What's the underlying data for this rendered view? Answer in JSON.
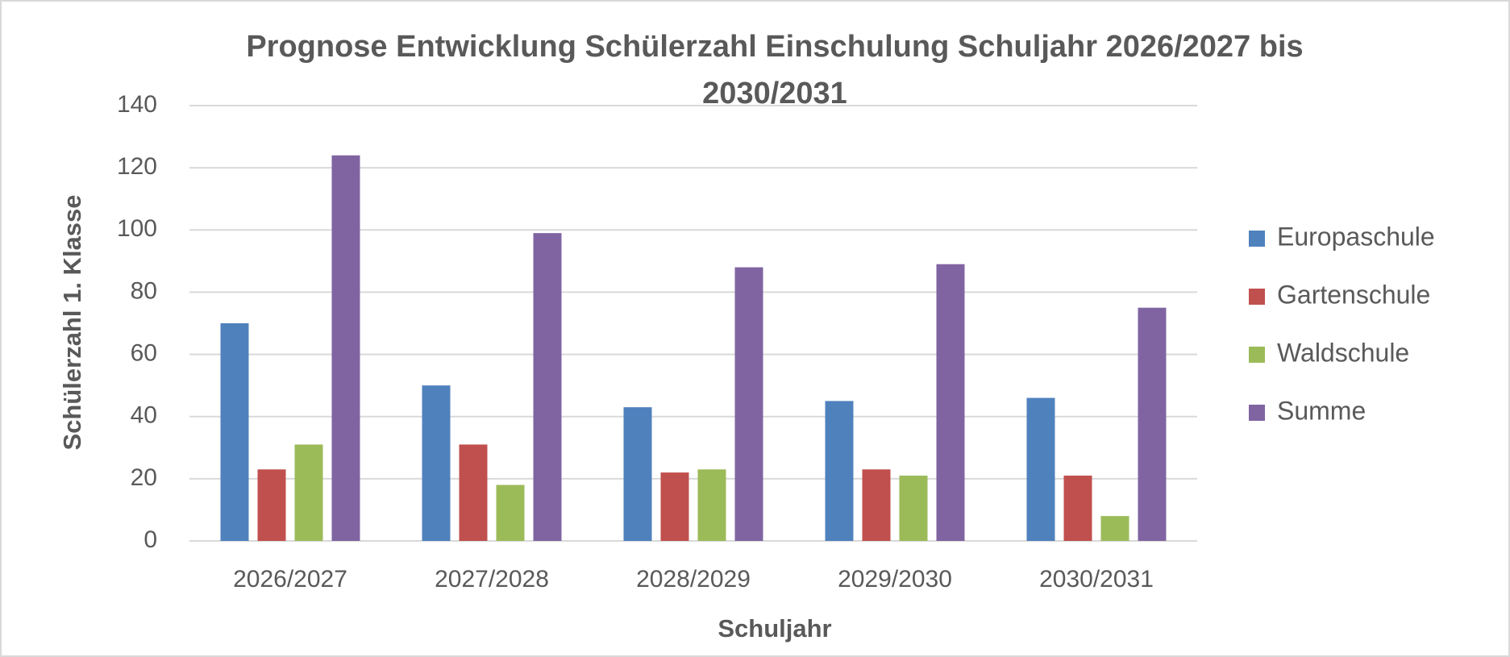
{
  "chart_data": {
    "type": "bar",
    "title": "Prognose Entwicklung Schülerzahl Einschulung Schuljahr 2026/2027 bis 2030/2031",
    "x_label": "Schuljahr",
    "y_label": "Schülerzahl 1. Klasse",
    "categories": [
      "2026/2027",
      "2027/2028",
      "2028/2029",
      "2029/2030",
      "2030/2031"
    ],
    "series": [
      {
        "name": "Europaschule",
        "color": "#4f81bd",
        "values": [
          70,
          50,
          43,
          45,
          46
        ]
      },
      {
        "name": "Gartenschule",
        "color": "#c0504d",
        "values": [
          23,
          31,
          22,
          23,
          21
        ]
      },
      {
        "name": "Waldschule",
        "color": "#9bbb59",
        "values": [
          31,
          18,
          23,
          21,
          8
        ]
      },
      {
        "name": "Summe",
        "color": "#8064a2",
        "values": [
          124,
          99,
          88,
          89,
          75
        ]
      }
    ],
    "ylim": [
      0,
      140
    ],
    "yticks": [
      0,
      20,
      40,
      60,
      80,
      100,
      120,
      140
    ],
    "grid": true,
    "legend": "right"
  }
}
